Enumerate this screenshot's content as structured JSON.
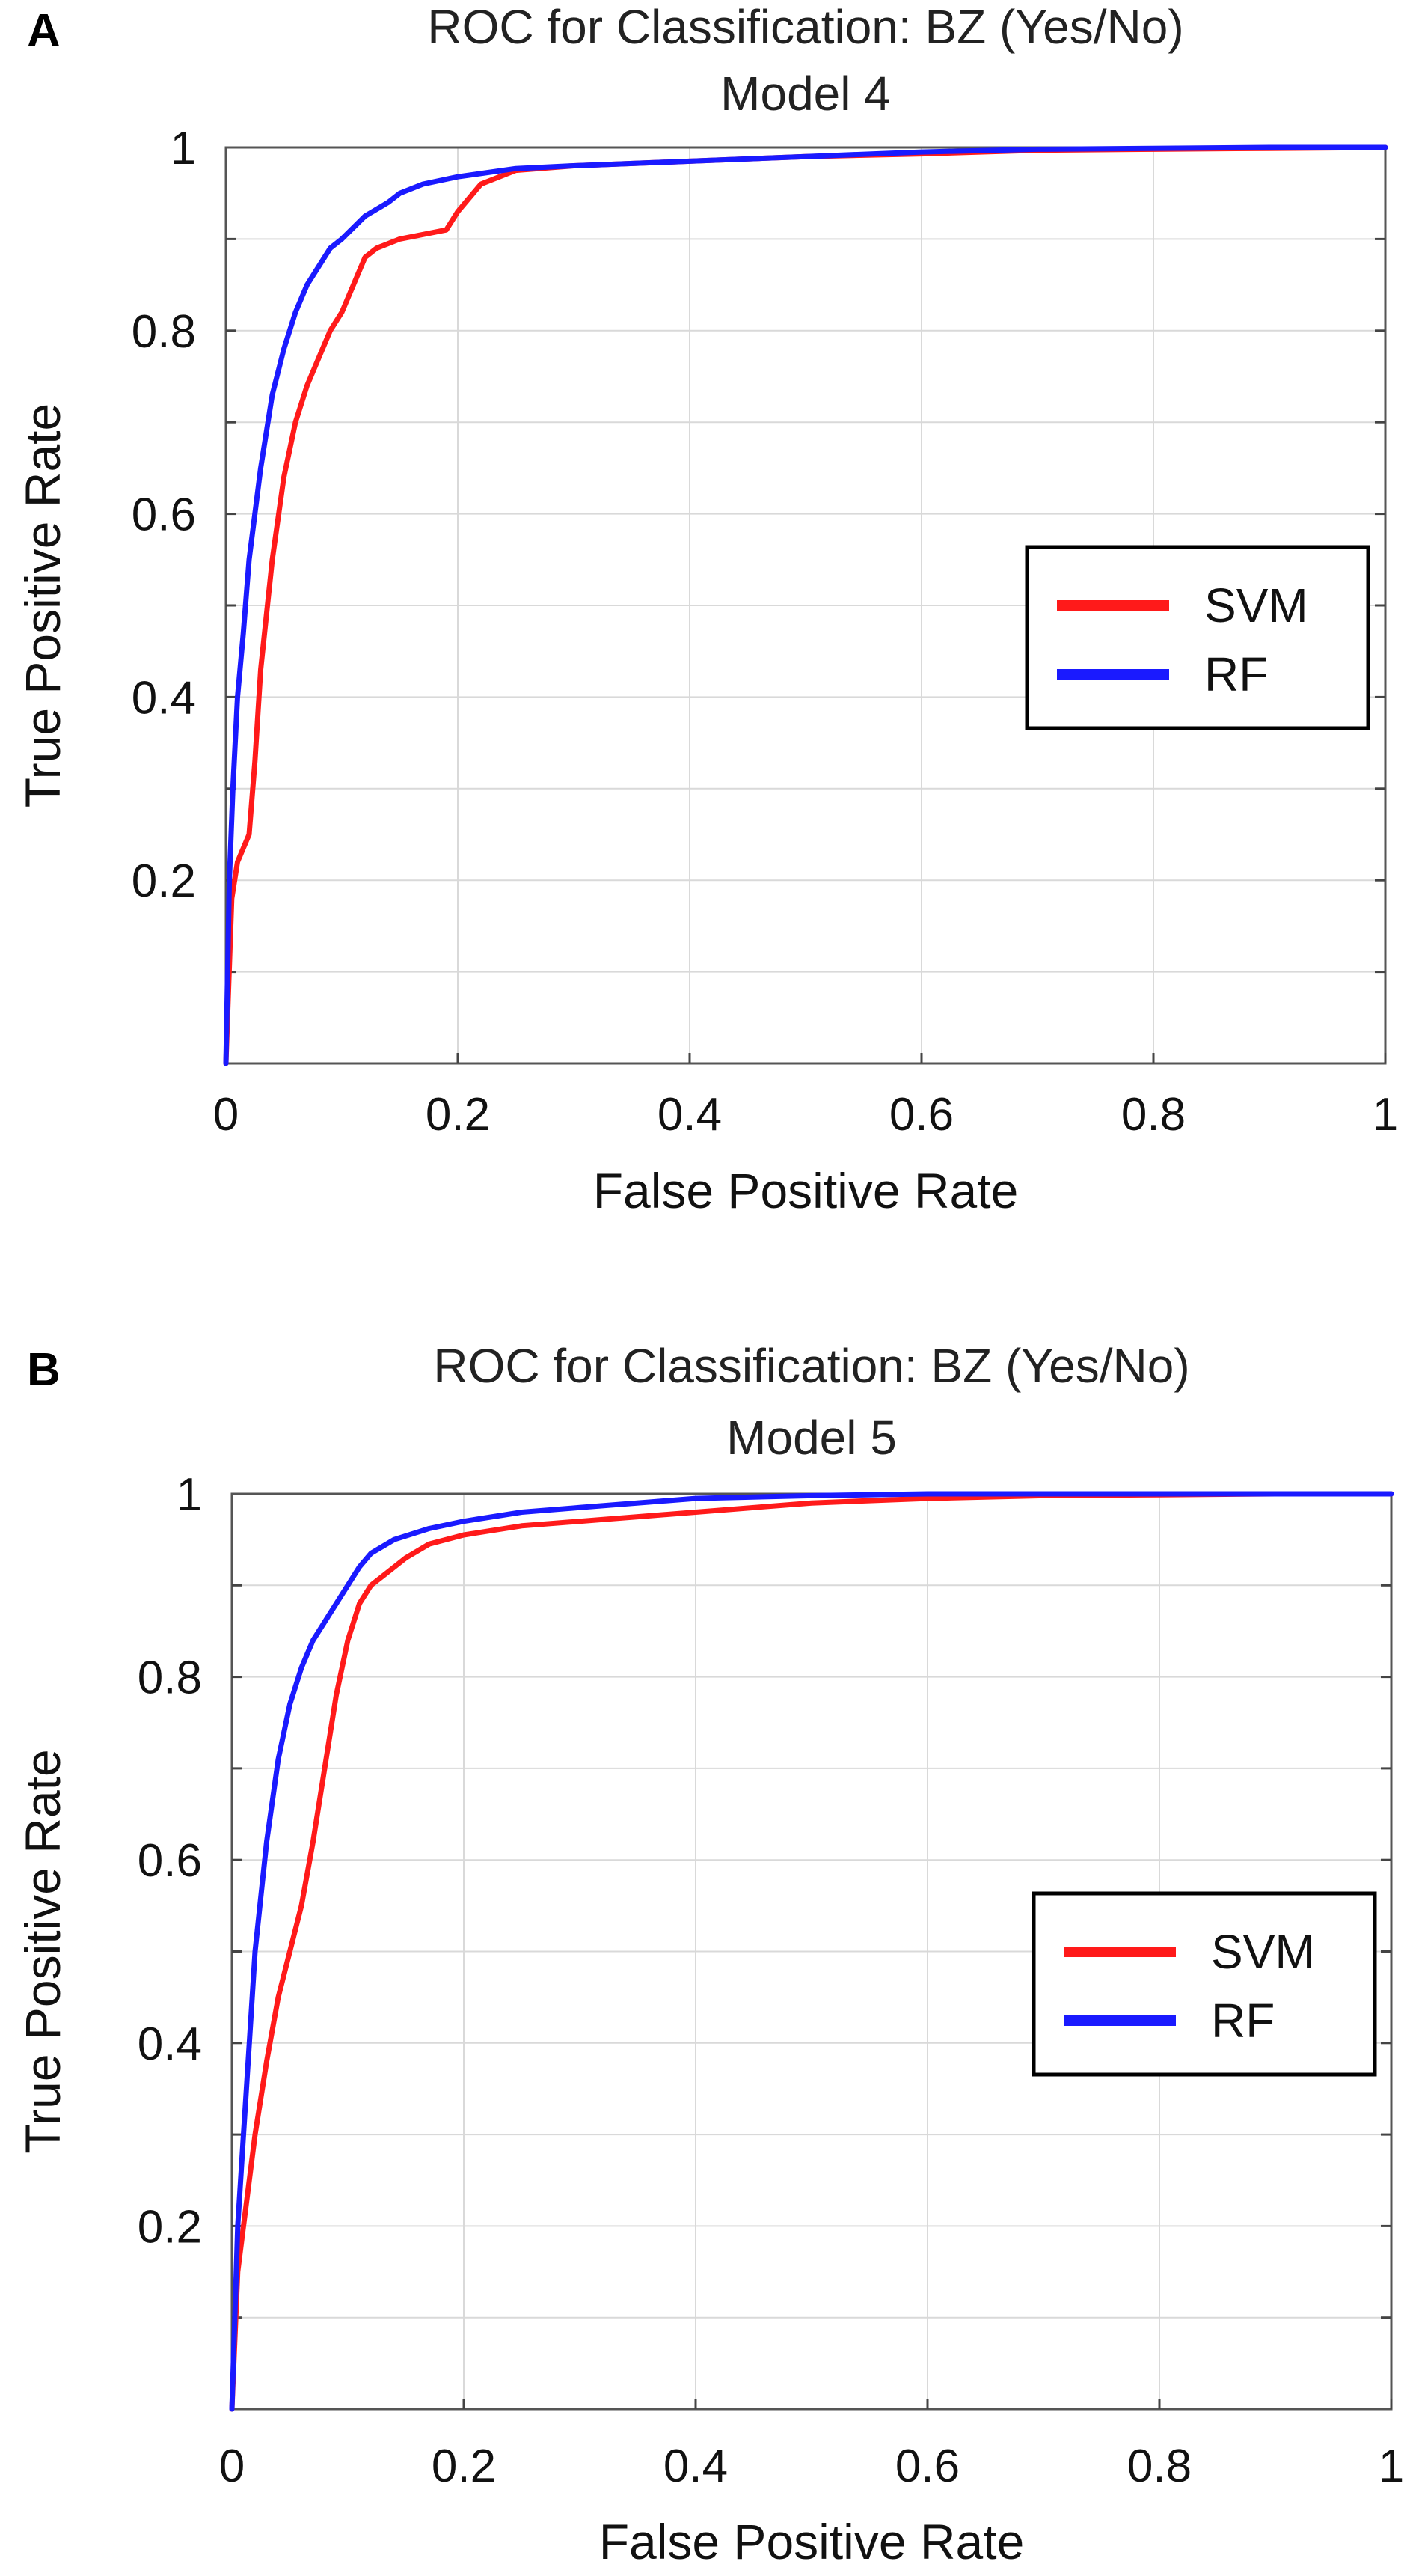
{
  "colors": {
    "svm": "#ff1a1a",
    "rf": "#1a1aff",
    "grid": "#d9d9d9",
    "axis": "#000000"
  },
  "chart_data": [
    {
      "panel_label": "A",
      "type": "line",
      "title": "ROC for Classification: BZ (Yes/No)",
      "subtitle": "Model 4",
      "xlabel": "False Positive Rate",
      "ylabel": "True Positive Rate",
      "xlim": [
        0,
        1
      ],
      "ylim": [
        0,
        1
      ],
      "xticks": [
        0,
        0.2,
        0.4,
        0.6,
        0.8,
        1
      ],
      "xtick_labels": [
        "0",
        "0.2",
        "0.4",
        "0.6",
        "0.8",
        "1"
      ],
      "yticks": [
        0.2,
        0.4,
        0.6,
        0.8,
        1
      ],
      "ytick_labels": [
        "0.2",
        "0.4",
        "0.6",
        "0.8",
        "1"
      ],
      "grid": true,
      "legend": {
        "position": "center-right",
        "entries": [
          "SVM",
          "RF"
        ]
      },
      "series": [
        {
          "name": "SVM",
          "x": [
            0,
            0.005,
            0.01,
            0.02,
            0.025,
            0.03,
            0.04,
            0.05,
            0.06,
            0.07,
            0.08,
            0.09,
            0.1,
            0.11,
            0.12,
            0.13,
            0.15,
            0.17,
            0.19,
            0.2,
            0.22,
            0.25,
            0.3,
            0.4,
            0.5,
            0.6,
            0.7,
            0.8,
            0.9,
            1
          ],
          "y": [
            0,
            0.18,
            0.22,
            0.25,
            0.33,
            0.43,
            0.55,
            0.64,
            0.7,
            0.74,
            0.77,
            0.8,
            0.82,
            0.85,
            0.88,
            0.89,
            0.9,
            0.905,
            0.91,
            0.93,
            0.96,
            0.975,
            0.98,
            0.985,
            0.99,
            0.993,
            0.997,
            0.998,
            0.999,
            1
          ]
        },
        {
          "name": "RF",
          "x": [
            0,
            0.003,
            0.006,
            0.01,
            0.015,
            0.02,
            0.03,
            0.04,
            0.05,
            0.06,
            0.07,
            0.08,
            0.09,
            0.1,
            0.12,
            0.14,
            0.15,
            0.17,
            0.2,
            0.25,
            0.3,
            0.4,
            0.5,
            0.6,
            0.7,
            0.8,
            0.9,
            1
          ],
          "y": [
            0,
            0.2,
            0.3,
            0.4,
            0.47,
            0.55,
            0.65,
            0.73,
            0.78,
            0.82,
            0.85,
            0.87,
            0.89,
            0.9,
            0.925,
            0.94,
            0.95,
            0.96,
            0.968,
            0.977,
            0.98,
            0.985,
            0.99,
            0.995,
            0.998,
            0.999,
            1,
            1
          ]
        }
      ]
    },
    {
      "panel_label": "B",
      "type": "line",
      "title": "ROC for Classification: BZ (Yes/No)",
      "subtitle": "Model 5",
      "xlabel": "False Positive Rate",
      "ylabel": "True Positive Rate",
      "xlim": [
        0,
        1
      ],
      "ylim": [
        0,
        1
      ],
      "xticks": [
        0,
        0.2,
        0.4,
        0.6,
        0.8,
        1
      ],
      "xtick_labels": [
        "0",
        "0.2",
        "0.4",
        "0.6",
        "0.8",
        "1"
      ],
      "yticks": [
        0.2,
        0.4,
        0.6,
        0.8,
        1
      ],
      "ytick_labels": [
        "0.2",
        "0.4",
        "0.6",
        "0.8",
        "1"
      ],
      "grid": true,
      "legend": {
        "position": "center-right",
        "entries": [
          "SVM",
          "RF"
        ]
      },
      "series": [
        {
          "name": "SVM",
          "x": [
            0,
            0.005,
            0.01,
            0.02,
            0.03,
            0.04,
            0.05,
            0.06,
            0.07,
            0.08,
            0.09,
            0.1,
            0.11,
            0.12,
            0.13,
            0.15,
            0.17,
            0.2,
            0.25,
            0.3,
            0.35,
            0.4,
            0.5,
            0.6,
            0.7,
            0.8,
            0.9,
            1
          ],
          "y": [
            0,
            0.15,
            0.2,
            0.3,
            0.38,
            0.45,
            0.5,
            0.55,
            0.62,
            0.7,
            0.78,
            0.84,
            0.88,
            0.9,
            0.91,
            0.93,
            0.945,
            0.955,
            0.965,
            0.97,
            0.975,
            0.98,
            0.99,
            0.995,
            0.998,
            0.999,
            1,
            1
          ]
        },
        {
          "name": "RF",
          "x": [
            0,
            0.005,
            0.01,
            0.015,
            0.02,
            0.03,
            0.04,
            0.05,
            0.06,
            0.07,
            0.08,
            0.09,
            0.1,
            0.11,
            0.12,
            0.14,
            0.17,
            0.2,
            0.25,
            0.3,
            0.4,
            0.5,
            0.6,
            0.7,
            0.8,
            0.9,
            1
          ],
          "y": [
            0,
            0.2,
            0.3,
            0.4,
            0.5,
            0.62,
            0.71,
            0.77,
            0.81,
            0.84,
            0.86,
            0.88,
            0.9,
            0.92,
            0.935,
            0.95,
            0.962,
            0.97,
            0.98,
            0.985,
            0.995,
            0.998,
            1,
            1,
            1,
            1,
            1
          ]
        }
      ]
    }
  ]
}
